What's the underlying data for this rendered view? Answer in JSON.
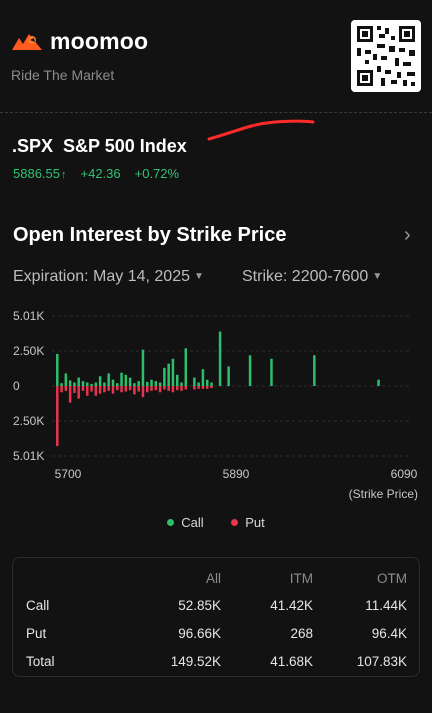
{
  "header": {
    "brand": "moomoo",
    "tagline": "Ride The Market",
    "qr_icon": "qr-code-icon",
    "brand_color": "#ff5a1f"
  },
  "quote": {
    "ticker": ".SPX  S&P 500 Index",
    "price": "5886.55",
    "change": "+42.36",
    "change_pct": "+0.72%",
    "up_color": "#32c172"
  },
  "section": {
    "title": "Open Interest by Strike Price",
    "chevron_icon": "chevron-right-icon"
  },
  "filters": {
    "expiration": "Expiration: May 14, 2025",
    "strike": "Strike: 2200-7600"
  },
  "chart_data": {
    "type": "bar",
    "x_ticks": [
      "5700",
      "5890",
      "6090"
    ],
    "x_unit_label": "(Strike Price)",
    "y_ticks": [
      "5.01K",
      "2.50K",
      "0",
      "2.50K",
      "5.01K"
    ],
    "ylim": [
      -5010,
      5010
    ],
    "xlim": [
      5695,
      6100
    ],
    "series": [
      {
        "name": "Call",
        "color": "#2dbf6b",
        "x": [
          5700,
          5705,
          5710,
          5715,
          5720,
          5725,
          5730,
          5735,
          5740,
          5745,
          5750,
          5755,
          5760,
          5765,
          5770,
          5775,
          5780,
          5785,
          5790,
          5795,
          5800,
          5805,
          5810,
          5815,
          5820,
          5825,
          5830,
          5835,
          5840,
          5845,
          5850,
          5860,
          5865,
          5870,
          5875,
          5880,
          5890,
          5900,
          5925,
          5950,
          6000,
          6075
        ],
        "values": [
          2300,
          200,
          900,
          400,
          250,
          600,
          350,
          250,
          150,
          250,
          700,
          250,
          900,
          450,
          200,
          950,
          800,
          600,
          200,
          350,
          2600,
          300,
          450,
          350,
          250,
          1300,
          1600,
          1950,
          800,
          250,
          2700,
          600,
          250,
          1200,
          450,
          250,
          3900,
          1400,
          2200,
          1950,
          2200,
          450
        ]
      },
      {
        "name": "Put",
        "color": "#e8344e",
        "x": [
          5700,
          5705,
          5710,
          5715,
          5720,
          5725,
          5730,
          5735,
          5740,
          5745,
          5750,
          5755,
          5760,
          5765,
          5770,
          5775,
          5780,
          5785,
          5790,
          5795,
          5800,
          5805,
          5810,
          5815,
          5820,
          5825,
          5830,
          5835,
          5840,
          5845,
          5850,
          5860,
          5865,
          5870,
          5875,
          5880
        ],
        "values": [
          4300,
          450,
          350,
          1200,
          500,
          900,
          350,
          700,
          400,
          700,
          550,
          450,
          350,
          550,
          300,
          450,
          400,
          300,
          600,
          400,
          800,
          450,
          350,
          300,
          450,
          250,
          350,
          450,
          300,
          350,
          250,
          250,
          200,
          200,
          200,
          150
        ]
      }
    ]
  },
  "legend": {
    "call": "Call",
    "put": "Put"
  },
  "summary_table": {
    "headers": [
      "",
      "All",
      "ITM",
      "OTM"
    ],
    "rows": [
      [
        "Call",
        "52.85K",
        "41.42K",
        "11.44K"
      ],
      [
        "Put",
        "96.66K",
        "268",
        "96.4K"
      ],
      [
        "Total",
        "149.52K",
        "41.68K",
        "107.83K"
      ]
    ]
  }
}
